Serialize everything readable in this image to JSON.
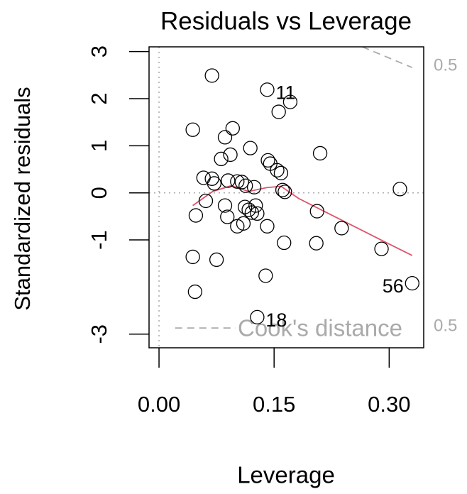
{
  "chart_data": {
    "type": "scatter",
    "title": "Residuals vs Leverage",
    "x_label": "Leverage",
    "y_label": "Standardized residuals",
    "xlim": [
      -0.013,
      0.345
    ],
    "ylim": [
      -3.29,
      3.1
    ],
    "xticks": [
      {
        "value": 0,
        "label": "0.00"
      },
      0.15,
      {
        "value": 0.3,
        "label": "0.30"
      }
    ],
    "yticks": [
      3,
      2,
      1,
      0,
      -1,
      -3
    ],
    "reference_lines": {
      "color": "#aaaaaa",
      "x": 0,
      "y": 0
    },
    "x": [
      0.069,
      0.141,
      0.171,
      0.156,
      0.044,
      0.096,
      0.086,
      0.093,
      0.081,
      0.119,
      0.21,
      0.142,
      0.145,
      0.154,
      0.159,
      0.058,
      0.069,
      0.072,
      0.09,
      0.102,
      0.108,
      0.113,
      0.124,
      0.161,
      0.164,
      0.314,
      0.061,
      0.086,
      0.112,
      0.117,
      0.126,
      0.128,
      0.121,
      0.206,
      0.048,
      0.089,
      0.102,
      0.11,
      0.141,
      0.238,
      0.163,
      0.205,
      0.29,
      0.044,
      0.075,
      0.139,
      0.33,
      0.047,
      0.128
    ],
    "values": [
      2.49,
      2.19,
      1.93,
      1.72,
      1.34,
      1.37,
      1.18,
      0.81,
      0.72,
      0.95,
      0.84,
      0.69,
      0.62,
      0.48,
      0.42,
      0.32,
      0.3,
      0.2,
      0.26,
      0.24,
      0.23,
      0.15,
      0.12,
      0.06,
      0.02,
      0.08,
      -0.17,
      -0.27,
      -0.3,
      -0.36,
      -0.27,
      -0.44,
      -0.42,
      -0.39,
      -0.48,
      -0.51,
      -0.71,
      -0.65,
      -0.71,
      -0.75,
      -1.06,
      -1.07,
      -1.19,
      -1.36,
      -1.42,
      -1.76,
      -1.92,
      -2.1,
      -2.64
    ],
    "point_labels": [
      null,
      "11",
      null,
      null,
      null,
      null,
      null,
      null,
      null,
      null,
      null,
      null,
      null,
      null,
      null,
      null,
      null,
      null,
      null,
      null,
      null,
      null,
      null,
      null,
      null,
      null,
      null,
      null,
      null,
      null,
      null,
      null,
      null,
      null,
      null,
      null,
      null,
      null,
      null,
      null,
      null,
      null,
      null,
      null,
      null,
      null,
      "56",
      null,
      "18"
    ],
    "color": "#000000",
    "smooth": {
      "color": "#df536b",
      "x": [
        0.044,
        0.07,
        0.094,
        0.117,
        0.14,
        0.159,
        0.182,
        0.237,
        0.293,
        0.33
      ],
      "values": [
        -0.27,
        0.03,
        0.15,
        0.03,
        0.11,
        0.14,
        -0.12,
        -0.57,
        -1.03,
        -1.33
      ]
    },
    "cooks_distance": {
      "label": "Cook's distance",
      "color": "#aaaaaa",
      "contours": [
        {
          "x": [
            0.265,
            0.33
          ],
          "values": [
            3.1,
            2.66
          ],
          "label": "0.5"
        },
        {
          "x": [
            0.021,
            0.1
          ],
          "values": [
            -2.87,
            -2.87
          ],
          "label": "0.5"
        }
      ]
    }
  }
}
